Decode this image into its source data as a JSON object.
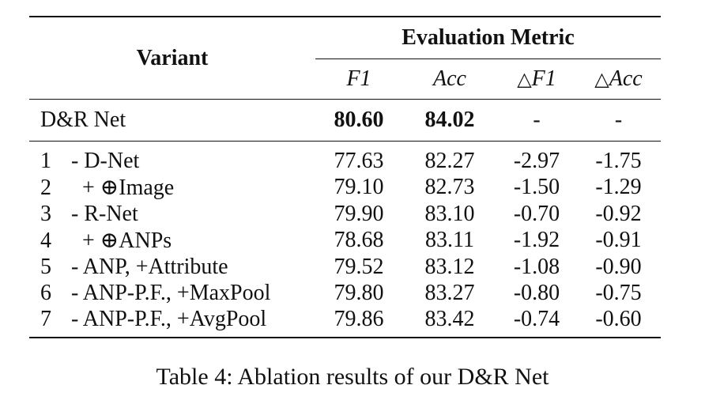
{
  "table": {
    "header": {
      "variant": "Variant",
      "group": "Evaluation Metric",
      "cols": [
        "F1",
        "Acc",
        "F1",
        "Acc"
      ],
      "delta_symbol": "△"
    },
    "main_row": {
      "name": "D&R Net",
      "values": [
        "80.60",
        "84.02",
        "-",
        "-"
      ]
    },
    "ablations": [
      {
        "index": "1",
        "name": " - D-Net",
        "values": [
          "77.63",
          "82.27",
          "-2.97",
          "-1.75"
        ]
      },
      {
        "index": "2",
        "name": "   + ⊕Image",
        "values": [
          "79.10",
          "82.73",
          "-1.50",
          "-1.29"
        ]
      },
      {
        "index": "3",
        "name": " - R-Net",
        "values": [
          "79.90",
          "83.10",
          "-0.70",
          "-0.92"
        ]
      },
      {
        "index": "4",
        "name": "   + ⊕ANPs",
        "values": [
          "78.68",
          "83.11",
          "-1.92",
          "-0.91"
        ]
      },
      {
        "index": "5",
        "name": " - ANP, +Attribute",
        "values": [
          "79.52",
          "83.12",
          "-1.08",
          "-0.90"
        ]
      },
      {
        "index": "6",
        "name": " - ANP-P.F., +MaxPool",
        "values": [
          "79.80",
          "83.27",
          "-0.80",
          "-0.75"
        ]
      },
      {
        "index": "7",
        "name": " - ANP-P.F., +AvgPool",
        "values": [
          "79.86",
          "83.42",
          "-0.74",
          "-0.60"
        ]
      }
    ]
  },
  "caption": "Table 4: Ablation results of our D&R Net"
}
